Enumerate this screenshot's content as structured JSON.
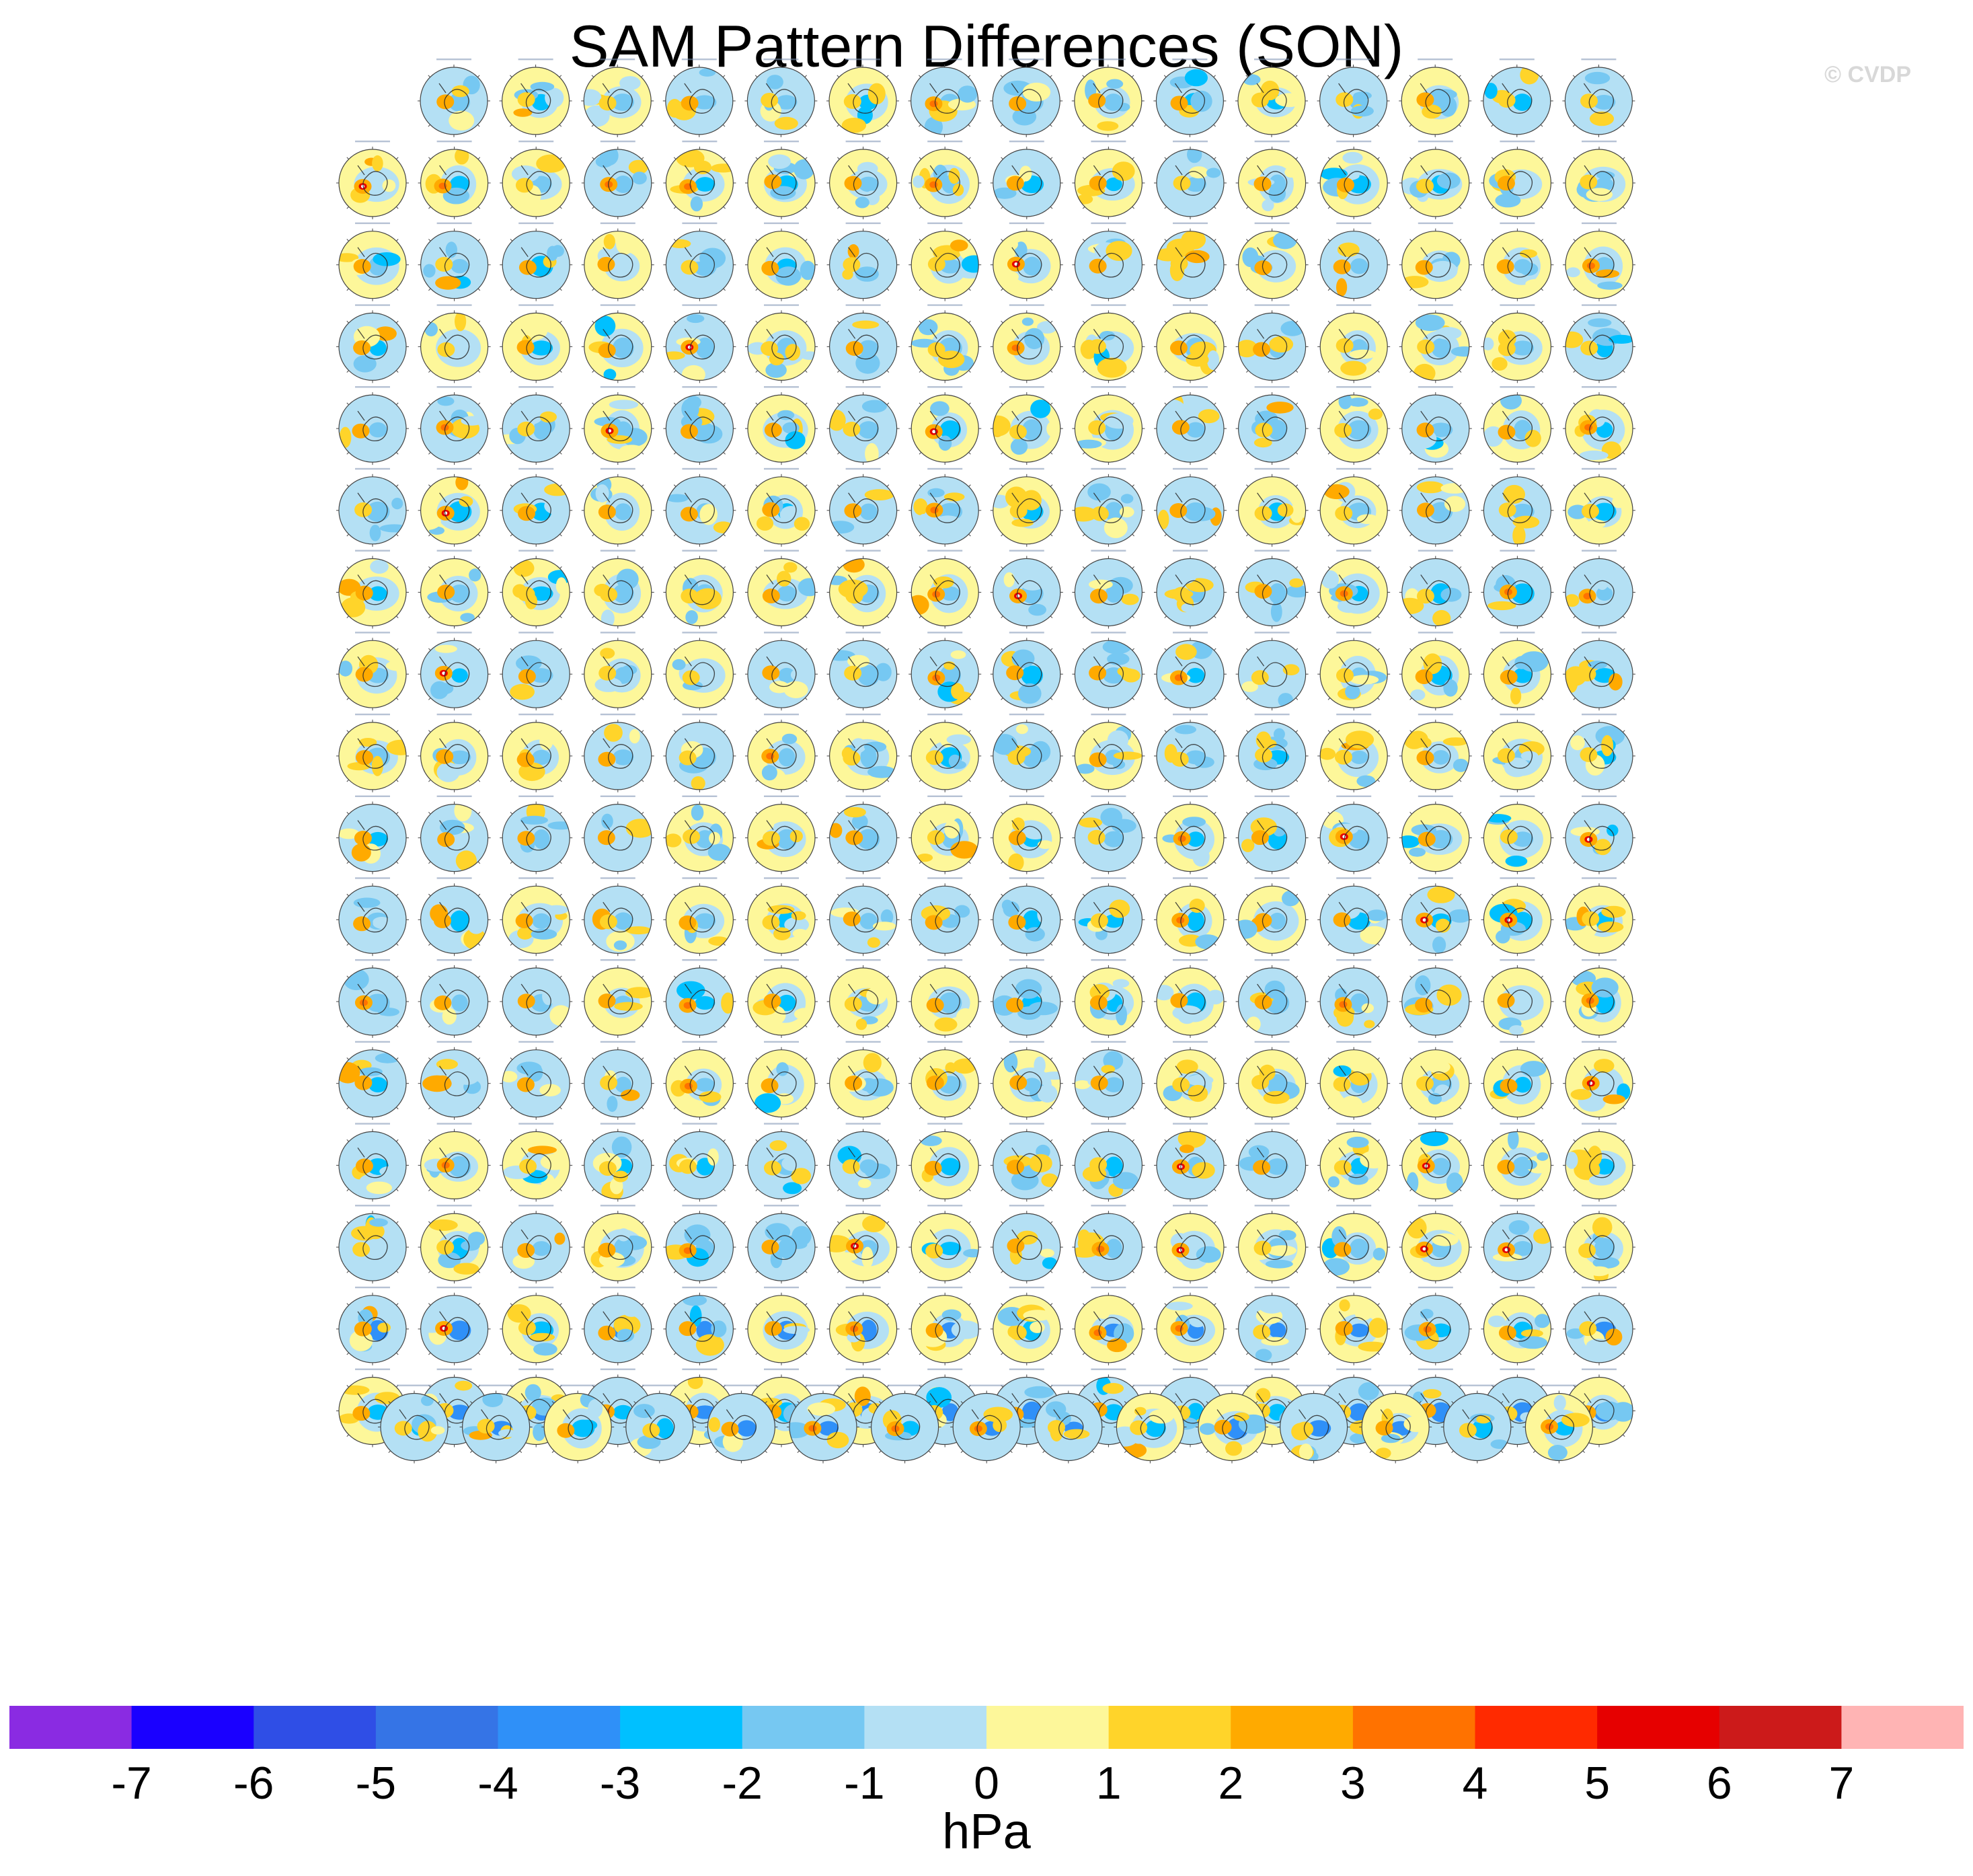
{
  "title": "SAM Pattern Differences (SON)",
  "credit": "© CVDP",
  "chart_data": {
    "type": "heatmap",
    "title": "SAM Pattern Differences (SON)",
    "projection": "south-polar stereographic",
    "panel_rows": [
      15,
      16,
      16,
      16,
      16,
      16,
      16,
      16,
      16,
      16,
      16,
      16,
      16,
      16,
      16,
      16,
      16,
      15
    ],
    "panel_count": 286,
    "panel_titles_legible": false,
    "colorbar": {
      "label": "hPa",
      "levels": [
        -7,
        -6,
        -5,
        -4,
        -3,
        -2,
        -1,
        0,
        1,
        2,
        3,
        4,
        5,
        6,
        7
      ],
      "colors": [
        "#8a2be2",
        "#1a00ff",
        "#2f4ee6",
        "#3574e6",
        "#2f90f8",
        "#00c0ff",
        "#76c8f2",
        "#b4e0f4",
        "#fdf79a",
        "#ffd42a",
        "#ffaa00",
        "#ff7200",
        "#ff2a00",
        "#e60000",
        "#cc1a1a",
        "#ffb4b4"
      ],
      "tick_labels": [
        "-7",
        "-6",
        "-5",
        "-4",
        "-3",
        "-2",
        "-1",
        "0",
        "1",
        "2",
        "3",
        "4",
        "5",
        "6",
        "7"
      ]
    }
  }
}
